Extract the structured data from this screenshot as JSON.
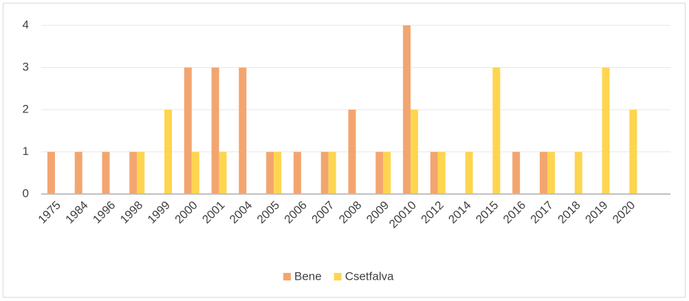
{
  "chart_data": {
    "type": "bar",
    "categories": [
      "1975",
      "1984",
      "1996",
      "1998",
      "1999",
      "2000",
      "2001",
      "2004",
      "2005",
      "2006",
      "2007",
      "2008",
      "2009",
      "20010",
      "2012",
      "2014",
      "2015",
      "2016",
      "2017",
      "2018",
      "2019",
      "2020",
      null
    ],
    "series": [
      {
        "name": "Bene",
        "color": "#f3a56f",
        "values": [
          1,
          1,
          1,
          1,
          null,
          3,
          3,
          3,
          1,
          1,
          1,
          2,
          1,
          4,
          1,
          null,
          null,
          1,
          1,
          null,
          null,
          null,
          null
        ]
      },
      {
        "name": "Csetfalva",
        "color": "#ffd54f",
        "values": [
          null,
          null,
          null,
          1,
          2,
          1,
          1,
          null,
          1,
          null,
          1,
          null,
          1,
          2,
          1,
          1,
          3,
          null,
          1,
          1,
          3,
          2,
          null
        ]
      }
    ],
    "ylim": [
      0,
      4
    ],
    "yticks": [
      0,
      1,
      2,
      3,
      4
    ],
    "grid": true,
    "legend": "bottom"
  }
}
